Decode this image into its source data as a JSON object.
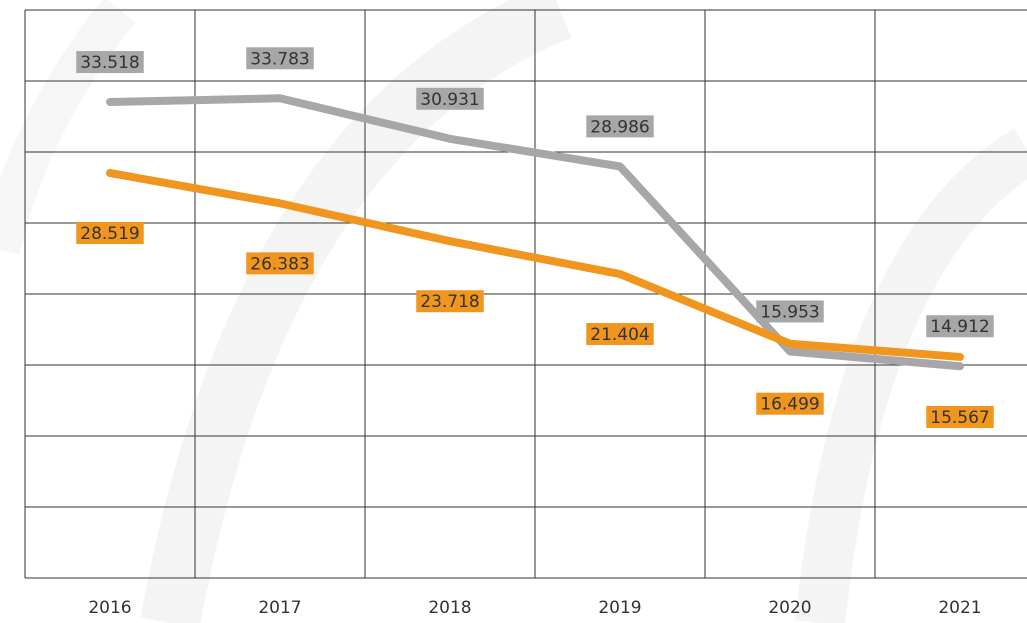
{
  "chart_data": {
    "type": "line",
    "categories": [
      "2016",
      "2017",
      "2018",
      "2019",
      "2020",
      "2021"
    ],
    "series": [
      {
        "name": "Grey",
        "color": "#a7a7a9",
        "values": [
          33.518,
          33.783,
          30.931,
          28.986,
          15.953,
          14.912
        ]
      },
      {
        "name": "Orange",
        "color": "#f0961e",
        "values": [
          28.519,
          26.383,
          23.718,
          21.404,
          16.499,
          15.567
        ]
      }
    ],
    "ylim": [
      0,
      40
    ],
    "yticks": [
      0,
      5,
      10,
      15,
      20,
      25,
      30,
      35,
      40
    ],
    "grid": true
  }
}
